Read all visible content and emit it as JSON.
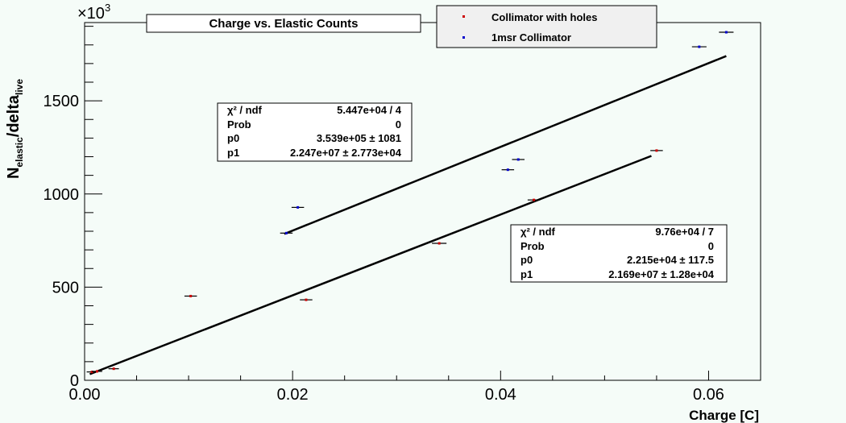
{
  "chart_data": {
    "type": "scatter",
    "title": "Charge vs. Elastic Counts",
    "xlabel": "Charge [C]",
    "ylabel_main": "N",
    "ylabel_sub": "elastic",
    "ylabel_mid": "/delta",
    "ylabel_sub2": "live",
    "y_multiplier": "×10",
    "y_multiplier_exp": "3",
    "xlim": [
      0.0,
      0.065
    ],
    "ylim": [
      0,
      1920
    ],
    "x_ticks": [
      0.0,
      0.02,
      0.04,
      0.06
    ],
    "x_tick_labels": [
      "0.00",
      "0.02",
      "0.04",
      "0.06"
    ],
    "y_ticks": [
      0,
      500,
      1000,
      1500
    ],
    "y_tick_labels": [
      "0",
      "500",
      "1000",
      "1500"
    ],
    "grid": false,
    "legend_position": "top-right",
    "series": [
      {
        "name": "Collimator with holes",
        "color": "#cc0000",
        "points": [
          {
            "x": 0.0007,
            "y": 45,
            "xerr": 0.0005
          },
          {
            "x": 0.0012,
            "y": 48,
            "xerr": 0.0005
          },
          {
            "x": 0.0028,
            "y": 62,
            "xerr": 0.0005
          },
          {
            "x": 0.0102,
            "y": 452,
            "xerr": 0.0006
          },
          {
            "x": 0.0213,
            "y": 432,
            "xerr": 0.0006
          },
          {
            "x": 0.0341,
            "y": 735,
            "xerr": 0.0007
          },
          {
            "x": 0.0432,
            "y": 968,
            "xerr": 0.0006
          },
          {
            "x": 0.055,
            "y": 1233,
            "xerr": 0.0006
          }
        ],
        "fit": {
          "p0": 22150,
          "p1": 21690000,
          "x_from": 0.0005,
          "x_to": 0.0545
        }
      },
      {
        "name": "1msr Collimator",
        "color": "#0000cc",
        "points": [
          {
            "x": 0.0194,
            "y": 790,
            "xerr": 0.0006
          },
          {
            "x": 0.0205,
            "y": 928,
            "xerr": 0.0006
          },
          {
            "x": 0.0407,
            "y": 1130,
            "xerr": 0.0006
          },
          {
            "x": 0.0417,
            "y": 1185,
            "xerr": 0.0006
          },
          {
            "x": 0.0591,
            "y": 1790,
            "xerr": 0.0007
          },
          {
            "x": 0.0617,
            "y": 1868,
            "xerr": 0.0007
          }
        ],
        "fit": {
          "p0": 353900,
          "p1": 22470000,
          "x_from": 0.0192,
          "x_to": 0.0617
        }
      }
    ],
    "stat_boxes": [
      {
        "rows": [
          {
            "label": "χ² / ndf",
            "value": "5.447e+04 / 4"
          },
          {
            "label": "Prob",
            "value": "0"
          },
          {
            "label": "p0",
            "value": "3.539e+05 ±  1081"
          },
          {
            "label": "p1",
            "value": "2.247e+07 ± 2.773e+04"
          }
        ]
      },
      {
        "rows": [
          {
            "label": "χ² / ndf",
            "value": "9.76e+04 / 7"
          },
          {
            "label": "Prob",
            "value": "0"
          },
          {
            "label": "p0",
            "value": "2.215e+04 ± 117.5"
          },
          {
            "label": "p1",
            "value": "2.169e+07 ± 1.28e+04"
          }
        ]
      }
    ]
  }
}
